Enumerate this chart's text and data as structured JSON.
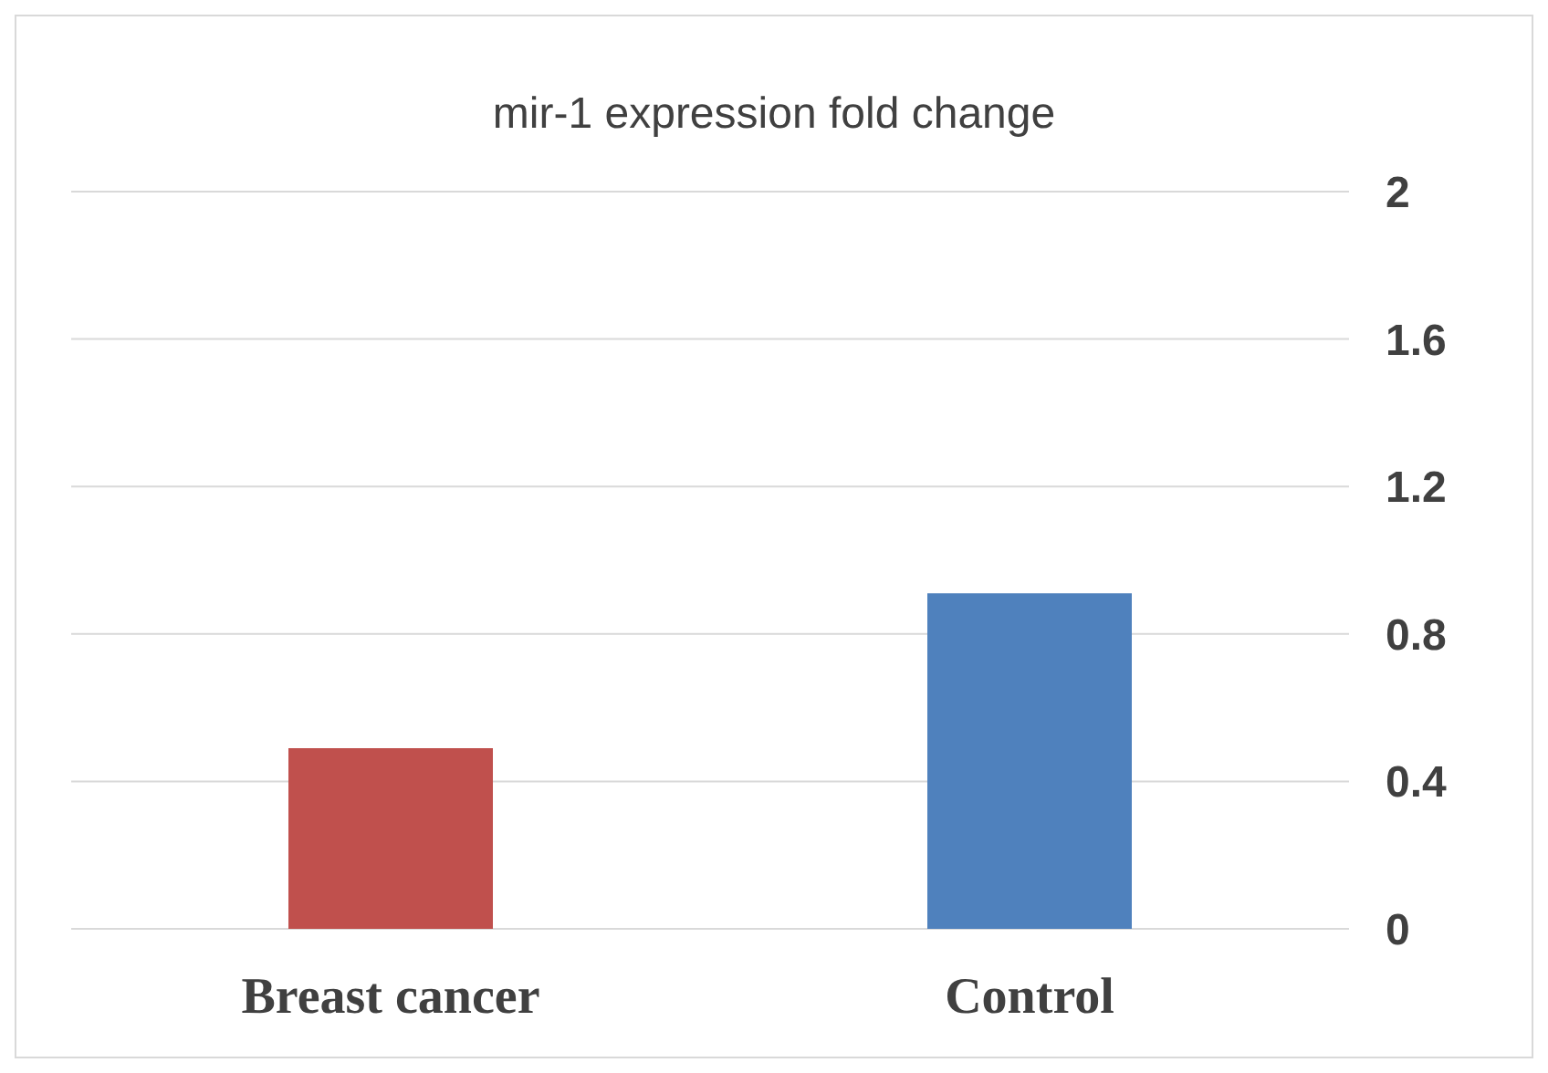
{
  "chart_data": {
    "type": "bar",
    "title": "mir-1 expression fold change",
    "categories": [
      "Breast cancer",
      "Control"
    ],
    "values": [
      0.49,
      0.91
    ],
    "colors": [
      "#c0504d",
      "#4f81bd"
    ],
    "ylim": [
      0,
      2
    ],
    "yticks": [
      0,
      0.4,
      0.8,
      1.2,
      1.6,
      2
    ],
    "grid": "y"
  }
}
